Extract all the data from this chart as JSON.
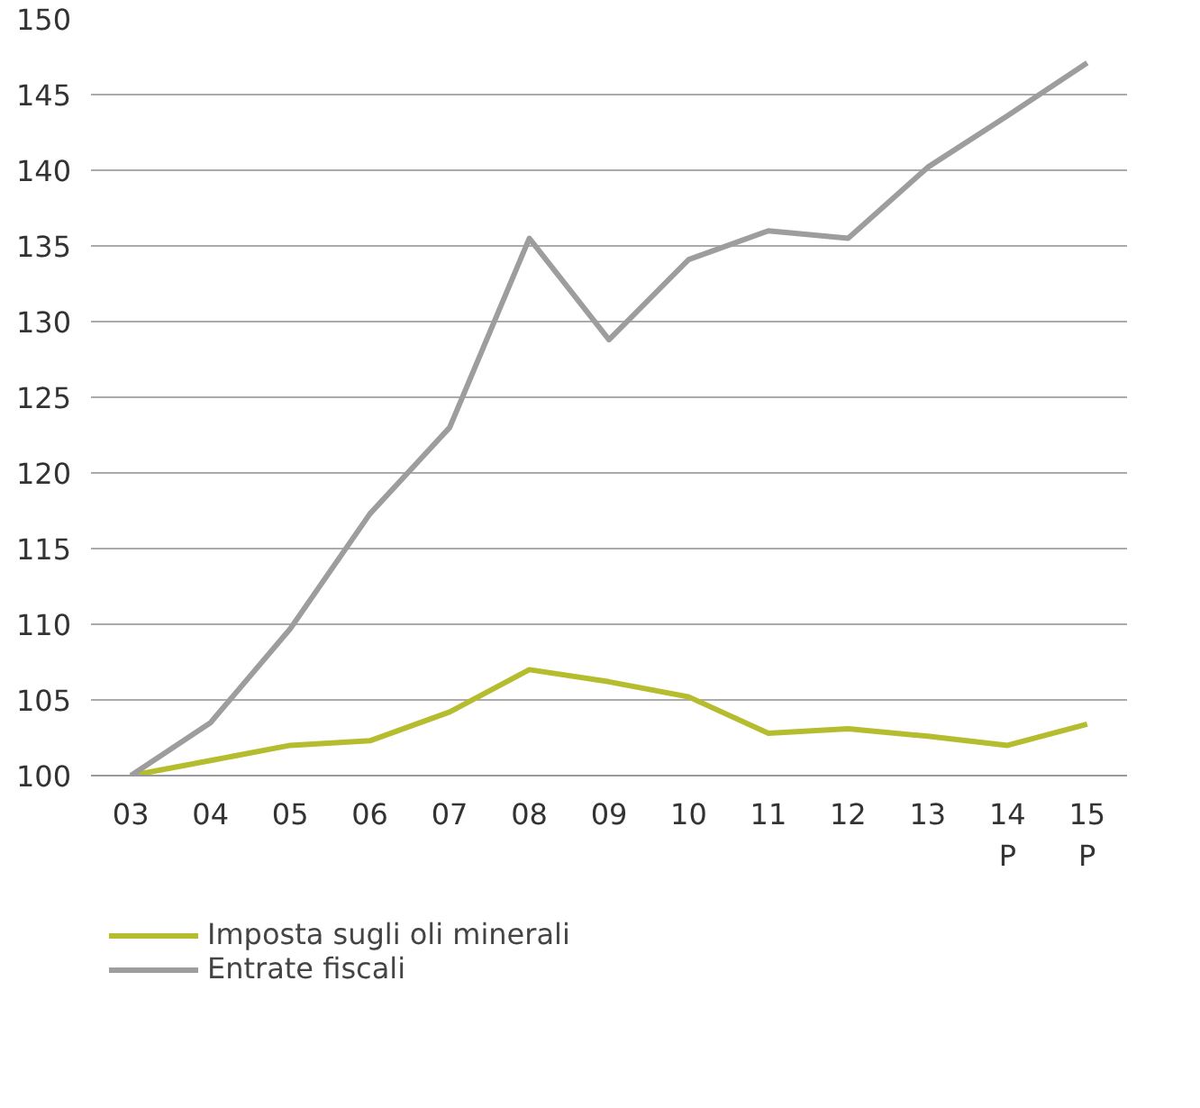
{
  "chart_data": {
    "type": "line",
    "categories": [
      "03",
      "04",
      "05",
      "06",
      "07",
      "08",
      "09",
      "10",
      "11",
      "12",
      "13",
      "14\nP",
      "15\nP"
    ],
    "series": [
      {
        "name": "Imposta sugli oli minerali",
        "color": "#b5bd2e",
        "values": [
          100,
          101,
          102,
          102.3,
          104.2,
          107,
          106.2,
          105.2,
          102.8,
          103.1,
          102.6,
          102,
          103.4
        ]
      },
      {
        "name": "Entrate fiscali",
        "color": "#9d9d9d",
        "values": [
          100,
          103.5,
          109.7,
          117.3,
          123,
          135.5,
          128.8,
          134.1,
          136,
          135.5,
          140.2,
          143.6,
          147.1
        ]
      }
    ],
    "ylim": [
      100,
      150
    ],
    "yticks": [
      100,
      105,
      110,
      115,
      120,
      125,
      130,
      135,
      140,
      145,
      150
    ],
    "grid": "y",
    "legend": "bottom",
    "marker": "none",
    "line_style": "solid"
  }
}
